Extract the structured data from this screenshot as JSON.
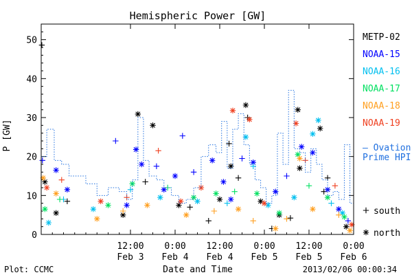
{
  "chart_data": {
    "type": "scatter",
    "title": "Hemispheric Power [GW]",
    "ylabel": "P [GW]",
    "xlabel": "Date and Time",
    "xlim": [
      "2013-02-02T12:00",
      "2013-02-06T00:00"
    ],
    "ylim": [
      0,
      54
    ],
    "x_ticks": [
      {
        "x": "2013-02-03T12:00",
        "time": "12:00",
        "date": "Feb 3"
      },
      {
        "x": "2013-02-04T00:00",
        "time": "0:00",
        "date": "Feb 4"
      },
      {
        "x": "2013-02-04T12:00",
        "time": "12:00",
        "date": "Feb 4"
      },
      {
        "x": "2013-02-05T00:00",
        "time": "0:00",
        "date": "Feb 5"
      },
      {
        "x": "2013-02-05T12:00",
        "time": "12:00",
        "date": "Feb 5"
      },
      {
        "x": "2013-02-06T00:00",
        "time": "0:00",
        "date": "Feb 6"
      }
    ],
    "y_ticks": [
      0,
      10,
      20,
      30,
      40,
      50
    ],
    "grid": false,
    "legend_position": "right",
    "marker_legend": {
      "south": "south",
      "north": "north"
    },
    "series": [
      {
        "name": "METP-02",
        "color": "#000000",
        "points": [
          [
            "2013-02-02T12:10",
            48.6,
            "south"
          ],
          [
            "2013-02-02T13:00",
            13.5,
            "north"
          ],
          [
            "2013-02-02T16:00",
            5.5,
            "north"
          ],
          [
            "2013-02-02T19:00",
            8.5,
            "south"
          ],
          [
            "2013-02-03T10:00",
            5.0,
            "north"
          ],
          [
            "2013-02-03T14:00",
            30.9,
            "north"
          ],
          [
            "2013-02-03T16:00",
            13.5,
            "south"
          ],
          [
            "2013-02-03T18:00",
            28.0,
            "north"
          ],
          [
            "2013-02-04T01:00",
            7.5,
            "north"
          ],
          [
            "2013-02-04T04:00",
            7.0,
            "south"
          ],
          [
            "2013-02-04T09:00",
            3.5,
            "south"
          ],
          [
            "2013-02-04T12:00",
            9.0,
            "north"
          ],
          [
            "2013-02-04T14:30",
            23.3,
            "south"
          ],
          [
            "2013-02-04T15:00",
            17.5,
            "north"
          ],
          [
            "2013-02-04T17:00",
            14.5,
            "south"
          ],
          [
            "2013-02-04T19:00",
            33.2,
            "north"
          ],
          [
            "2013-02-04T19:30",
            30.0,
            "south"
          ],
          [
            "2013-02-04T23:00",
            8.5,
            "north"
          ],
          [
            "2013-02-05T02:00",
            1.5,
            "south"
          ],
          [
            "2013-02-05T04:00",
            5.0,
            "north"
          ],
          [
            "2013-02-05T07:00",
            4.2,
            "south"
          ],
          [
            "2013-02-05T09:00",
            32.0,
            "north"
          ],
          [
            "2013-02-05T09:30",
            17.0,
            "north"
          ],
          [
            "2013-02-05T15:00",
            27.2,
            "north"
          ],
          [
            "2013-02-05T16:00",
            11.0,
            "south"
          ],
          [
            "2013-02-05T17:00",
            14.5,
            "south"
          ],
          [
            "2013-02-05T22:00",
            2.0,
            "north"
          ]
        ]
      },
      {
        "name": "NOAA-15",
        "color": "#0000ff",
        "points": [
          [
            "2013-02-02T12:20",
            19.0,
            "south"
          ],
          [
            "2013-02-02T16:00",
            16.5,
            "north"
          ],
          [
            "2013-02-02T19:00",
            11.5,
            "north"
          ],
          [
            "2013-02-03T08:00",
            24.0,
            "south"
          ],
          [
            "2013-02-03T11:00",
            7.5,
            "north"
          ],
          [
            "2013-02-03T13:30",
            21.8,
            "north"
          ],
          [
            "2013-02-03T15:00",
            18.0,
            "north"
          ],
          [
            "2013-02-03T19:00",
            17.5,
            "south"
          ],
          [
            "2013-02-03T21:00",
            11.5,
            "north"
          ],
          [
            "2013-02-04T00:00",
            15.0,
            "north"
          ],
          [
            "2013-02-04T02:00",
            25.3,
            "south"
          ],
          [
            "2013-02-04T05:00",
            16.0,
            "south"
          ],
          [
            "2013-02-04T10:00",
            19.0,
            "north"
          ],
          [
            "2013-02-04T13:00",
            13.5,
            "north"
          ],
          [
            "2013-02-04T15:00",
            9.0,
            "north"
          ],
          [
            "2013-02-04T18:00",
            19.5,
            "south"
          ],
          [
            "2013-02-04T21:00",
            18.5,
            "north"
          ],
          [
            "2013-02-05T03:00",
            11.0,
            "north"
          ],
          [
            "2013-02-05T06:00",
            15.0,
            "south"
          ],
          [
            "2013-02-05T10:00",
            22.5,
            "north"
          ],
          [
            "2013-02-05T13:00",
            21.0,
            "north"
          ],
          [
            "2013-02-05T17:00",
            11.5,
            "north"
          ],
          [
            "2013-02-05T20:00",
            6.5,
            "north"
          ],
          [
            "2013-02-05T22:30",
            3.5,
            "south"
          ]
        ]
      },
      {
        "name": "NOAA-16",
        "color": "#00bfef",
        "points": [
          [
            "2013-02-02T14:00",
            3.0,
            "north"
          ],
          [
            "2013-02-02T18:00",
            9.0,
            "south"
          ],
          [
            "2013-02-03T02:00",
            6.5,
            "north"
          ],
          [
            "2013-02-03T12:00",
            11.5,
            "south"
          ],
          [
            "2013-02-03T20:00",
            9.5,
            "north"
          ],
          [
            "2013-02-04T06:00",
            8.5,
            "north"
          ],
          [
            "2013-02-04T14:00",
            8.0,
            "south"
          ],
          [
            "2013-02-04T19:00",
            25.0,
            "north"
          ],
          [
            "2013-02-04T21:00",
            17.5,
            "south"
          ],
          [
            "2013-02-05T01:00",
            7.5,
            "north"
          ],
          [
            "2013-02-05T08:00",
            9.5,
            "north"
          ],
          [
            "2013-02-05T13:00",
            25.8,
            "north"
          ],
          [
            "2013-02-05T14:30",
            29.3,
            "north"
          ],
          [
            "2013-02-05T18:00",
            8.0,
            "south"
          ],
          [
            "2013-02-05T21:00",
            5.5,
            "north"
          ]
        ]
      },
      {
        "name": "NOAA-17",
        "color": "#00e060",
        "points": [
          [
            "2013-02-02T13:00",
            6.5,
            "north"
          ],
          [
            "2013-02-02T17:00",
            9.0,
            "south"
          ],
          [
            "2013-02-03T06:00",
            7.5,
            "north"
          ],
          [
            "2013-02-03T12:30",
            13.0,
            "north"
          ],
          [
            "2013-02-03T22:00",
            12.0,
            "south"
          ],
          [
            "2013-02-04T05:00",
            9.5,
            "north"
          ],
          [
            "2013-02-04T11:00",
            10.5,
            "north"
          ],
          [
            "2013-02-04T16:00",
            11.0,
            "south"
          ],
          [
            "2013-02-04T22:00",
            10.5,
            "north"
          ],
          [
            "2013-02-05T04:00",
            5.5,
            "north"
          ],
          [
            "2013-02-05T09:00",
            20.5,
            "north"
          ],
          [
            "2013-02-05T12:00",
            12.5,
            "south"
          ],
          [
            "2013-02-05T17:00",
            9.5,
            "north"
          ],
          [
            "2013-02-05T21:30",
            4.5,
            "north"
          ]
        ]
      },
      {
        "name": "NOAA-18",
        "color": "#ff9f1f",
        "points": [
          [
            "2013-02-02T12:30",
            14.5,
            "north"
          ],
          [
            "2013-02-02T16:00",
            10.5,
            "north"
          ],
          [
            "2013-02-03T03:00",
            4.0,
            "north"
          ],
          [
            "2013-02-03T10:00",
            6.0,
            "south"
          ],
          [
            "2013-02-03T16:30",
            7.5,
            "north"
          ],
          [
            "2013-02-04T03:00",
            5.0,
            "north"
          ],
          [
            "2013-02-04T10:30",
            6.0,
            "south"
          ],
          [
            "2013-02-04T17:00",
            6.5,
            "north"
          ],
          [
            "2013-02-04T21:00",
            3.5,
            "south"
          ],
          [
            "2013-02-05T03:00",
            1.5,
            "north"
          ],
          [
            "2013-02-05T06:00",
            4.0,
            "south"
          ],
          [
            "2013-02-05T09:30",
            19.5,
            "north"
          ],
          [
            "2013-02-05T13:00",
            6.5,
            "north"
          ],
          [
            "2013-02-05T20:00",
            5.0,
            "south"
          ],
          [
            "2013-02-05T23:00",
            1.0,
            "north"
          ]
        ]
      },
      {
        "name": "NOAA-19",
        "color": "#ef3f1f",
        "points": [
          [
            "2013-02-02T13:30",
            12.0,
            "north"
          ],
          [
            "2013-02-02T17:30",
            14.0,
            "south"
          ],
          [
            "2013-02-03T04:00",
            8.5,
            "north"
          ],
          [
            "2013-02-03T11:00",
            9.5,
            "south"
          ],
          [
            "2013-02-03T19:30",
            21.5,
            "south"
          ],
          [
            "2013-02-04T01:30",
            8.5,
            "north"
          ],
          [
            "2013-02-04T07:00",
            12.0,
            "north"
          ],
          [
            "2013-02-04T15:30",
            31.8,
            "north"
          ],
          [
            "2013-02-04T20:00",
            29.5,
            "north"
          ],
          [
            "2013-02-05T00:00",
            8.0,
            "north"
          ],
          [
            "2013-02-05T08:30",
            28.5,
            "north"
          ],
          [
            "2013-02-05T11:00",
            19.0,
            "south"
          ],
          [
            "2013-02-05T19:00",
            12.5,
            "south"
          ],
          [
            "2013-02-05T23:30",
            2.5,
            "north"
          ]
        ]
      },
      {
        "name": "— Ovation Prime HPI",
        "color": "#1f6fdf",
        "style": "stepped-dotted",
        "x": [
          "2013-02-02T12:00",
          "2013-02-02T13:30",
          "2013-02-02T15:30",
          "2013-02-02T17:30",
          "2013-02-02T19:30",
          "2013-02-03T00:00",
          "2013-02-03T03:00",
          "2013-02-03T06:00",
          "2013-02-03T09:00",
          "2013-02-03T11:00",
          "2013-02-03T12:30",
          "2013-02-03T14:00",
          "2013-02-03T15:30",
          "2013-02-03T17:00",
          "2013-02-03T19:00",
          "2013-02-03T21:00",
          "2013-02-03T23:00",
          "2013-02-04T01:00",
          "2013-02-04T03:00",
          "2013-02-04T05:00",
          "2013-02-04T07:00",
          "2013-02-04T09:00",
          "2013-02-04T11:00",
          "2013-02-04T12:30",
          "2013-02-04T14:00",
          "2013-02-04T15:30",
          "2013-02-04T17:00",
          "2013-02-04T18:30",
          "2013-02-04T20:00",
          "2013-02-04T21:30",
          "2013-02-04T23:00",
          "2013-02-05T00:30",
          "2013-02-05T02:00",
          "2013-02-05T03:30",
          "2013-02-05T05:00",
          "2013-02-05T06:30",
          "2013-02-05T08:00",
          "2013-02-05T09:30",
          "2013-02-05T11:00",
          "2013-02-05T12:30",
          "2013-02-05T14:00",
          "2013-02-05T15:30",
          "2013-02-05T17:00",
          "2013-02-05T18:30",
          "2013-02-05T20:00",
          "2013-02-05T21:30",
          "2013-02-05T23:00"
        ],
        "y": [
          20,
          27,
          19,
          18,
          15,
          13,
          10,
          12,
          11,
          9,
          14,
          30,
          19,
          15,
          14,
          12,
          10,
          8,
          9,
          12,
          20,
          23,
          21,
          29,
          17,
          27,
          31,
          23,
          18,
          14,
          12,
          8,
          10,
          26,
          18,
          37,
          22,
          21,
          16,
          22,
          18,
          14,
          10,
          11,
          9,
          23,
          8
        ]
      }
    ]
  },
  "footer": {
    "plot_credit": "Plot: CCMC",
    "timestamp": "2013/02/06 00:00:34"
  }
}
